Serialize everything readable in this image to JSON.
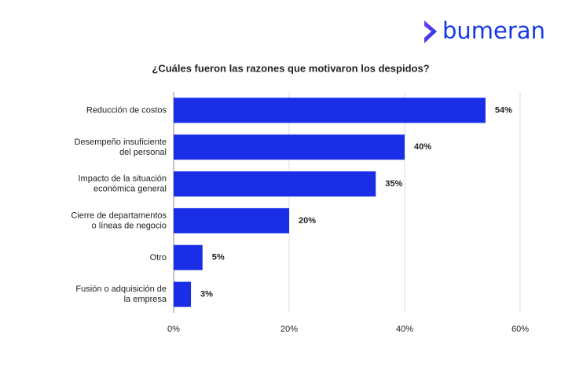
{
  "logo": "bumeran",
  "chart_data": {
    "type": "hbar",
    "title": "¿Cuáles fueron las razones que motivaron los despidos?",
    "categories": [
      [
        "Reducción de costos"
      ],
      [
        "Desempeño insuficiente",
        "del personal"
      ],
      [
        "Impacto de la situación",
        "económica general"
      ],
      [
        "Cierre de departamentos",
        "o líneas de negocio"
      ],
      [
        "Otro"
      ],
      [
        "Fusión o adquisición de",
        "la empresa"
      ]
    ],
    "values": [
      54,
      40,
      35,
      20,
      5,
      3
    ],
    "value_labels": [
      "54%",
      "40%",
      "35%",
      "20%",
      "5%",
      "3%"
    ],
    "color": "#1a2ee8",
    "xlim": [
      0,
      60
    ],
    "xticks": [
      {
        "value": 0,
        "label": "0%"
      },
      {
        "value": 20,
        "label": "20%"
      },
      {
        "value": 40,
        "label": "40%"
      },
      {
        "value": 60,
        "label": "60%"
      }
    ],
    "grid": true
  }
}
